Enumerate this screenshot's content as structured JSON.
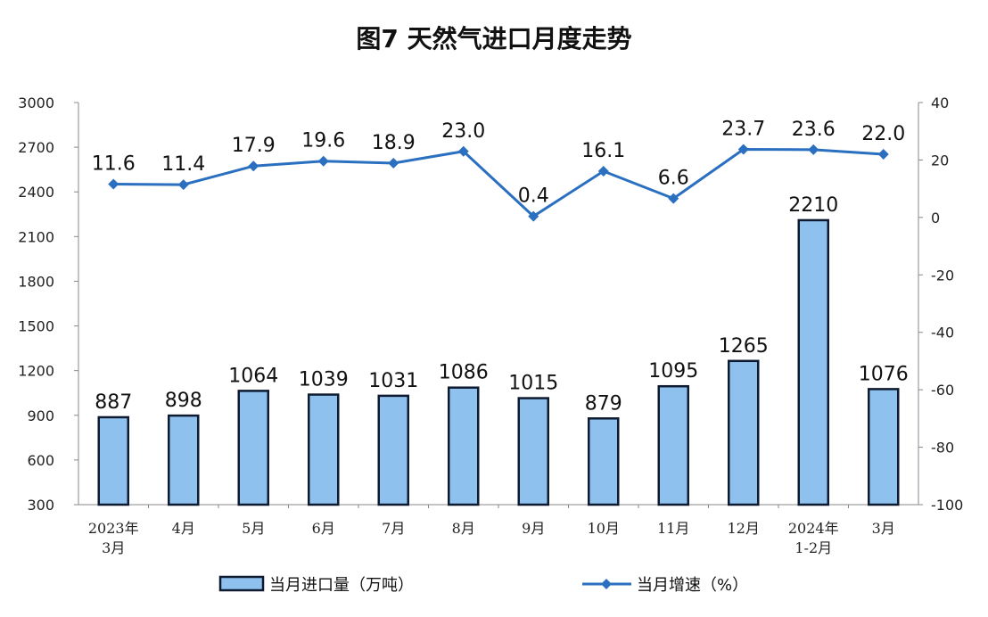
{
  "chart_data": {
    "type": "bar+line",
    "title": "图7  天然气进口月度走势",
    "categories": [
      "2023年\n3月",
      "4月",
      "5月",
      "6月",
      "7月",
      "8月",
      "9月",
      "10月",
      "11月",
      "12月",
      "2024年\n1-2月",
      "3月"
    ],
    "series": [
      {
        "name": "当月进口量（万吨）",
        "type": "bar",
        "axis": "left",
        "values": [
          887,
          898,
          1064,
          1039,
          1031,
          1086,
          1015,
          879,
          1095,
          1265,
          2210,
          1076
        ]
      },
      {
        "name": "当月增速（%）",
        "type": "line",
        "axis": "right",
        "values": [
          11.6,
          11.4,
          17.9,
          19.6,
          18.9,
          23.0,
          0.4,
          16.1,
          6.6,
          23.7,
          23.6,
          22.0
        ]
      }
    ],
    "left_axis": {
      "ylim": [
        300,
        3000
      ],
      "ticks": [
        300,
        600,
        900,
        1200,
        1500,
        1800,
        2100,
        2400,
        2700,
        3000
      ]
    },
    "right_axis": {
      "ylim": [
        -100,
        40
      ],
      "ticks": [
        -100,
        -80,
        -60,
        -40,
        -20,
        0,
        20,
        40
      ]
    },
    "grid": false,
    "legend": "bottom",
    "colors": {
      "bar_fill": "#8fc1ef",
      "bar_stroke": "#0d1a30",
      "line": "#2a6fc0",
      "axis": "#888888"
    }
  }
}
